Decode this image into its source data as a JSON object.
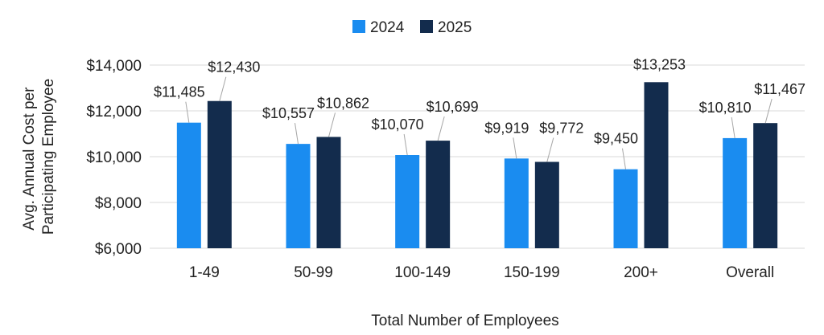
{
  "chart_data": {
    "type": "bar",
    "title": "",
    "xlabel": "Total Number of Employees",
    "ylabel": [
      "Avg. Annual Cost per",
      "Participating Employee"
    ],
    "ylim": [
      6000,
      14000
    ],
    "yticks": [
      {
        "value": 6000,
        "label": "$6,000"
      },
      {
        "value": 8000,
        "label": "$8,000"
      },
      {
        "value": 10000,
        "label": "$10,000"
      },
      {
        "value": 12000,
        "label": "$12,000"
      },
      {
        "value": 14000,
        "label": "$14,000"
      }
    ],
    "grid": true,
    "legend": "top-center",
    "categories": [
      "1-49",
      "50-99",
      "100-149",
      "150-199",
      "200+",
      "Overall"
    ],
    "series": [
      {
        "name": "2024",
        "color": "#1a8cf0",
        "values": [
          11485,
          10557,
          10070,
          9919,
          9450,
          10810
        ],
        "labels": [
          "$11,485",
          "$10,557",
          "$10,070",
          "$9,919",
          "$9,450",
          "$10,810"
        ]
      },
      {
        "name": "2025",
        "color": "#132c4d",
        "values": [
          12430,
          10862,
          10699,
          9772,
          13253,
          11467
        ],
        "labels": [
          "$12,430",
          "$10,862",
          "$10,699",
          "$9,772",
          "$13,253",
          "$11,467"
        ]
      }
    ]
  }
}
